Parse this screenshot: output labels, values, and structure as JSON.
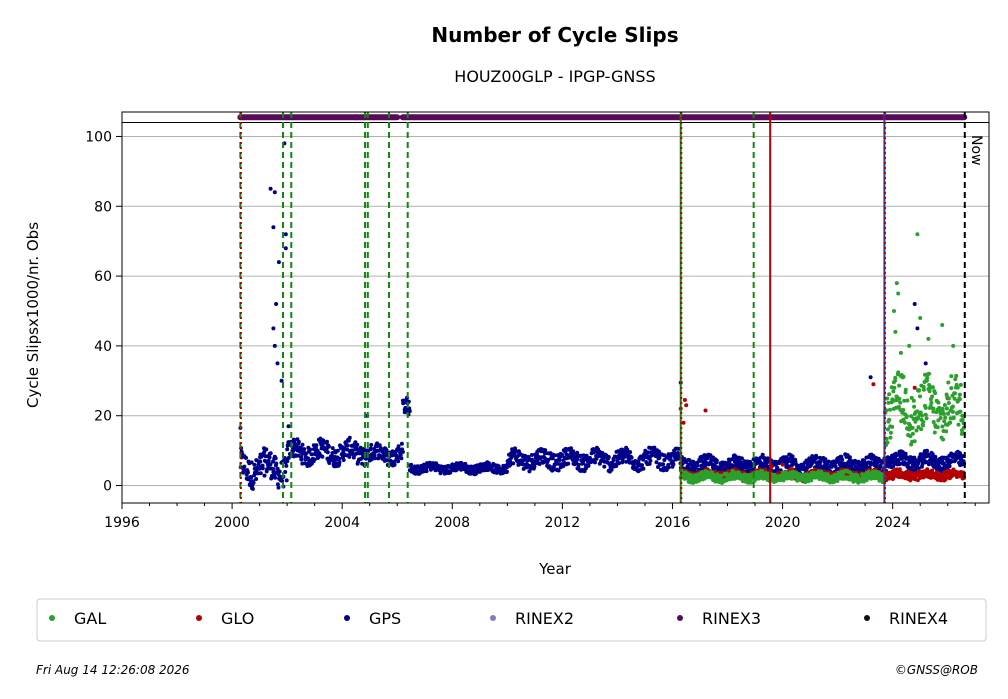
{
  "chart_data": {
    "type": "scatter",
    "title": "Number of Cycle Slips",
    "subtitle": "HOUZ00GLP - IPGP-GNSS",
    "xlabel": "Year",
    "ylabel": "Cycle Slipsx1000/nr. Obs",
    "xlim": [
      1996,
      2027.5
    ],
    "ylim": [
      -5,
      107
    ],
    "xticks": [
      1996,
      2000,
      2004,
      2008,
      2012,
      2016,
      2020,
      2024
    ],
    "yticks": [
      0,
      20,
      40,
      60,
      80,
      100
    ],
    "grid": "horizontal",
    "now_label": "Now",
    "now_x": 2026.62,
    "series": [
      {
        "name": "GPS",
        "color": "#00008b",
        "segments": [
          {
            "from": 2000.3,
            "to": 2002.0,
            "base": 5,
            "spread": 5
          },
          {
            "from": 2002.0,
            "to": 2004.9,
            "base": 9.5,
            "spread": 3.5
          },
          {
            "from": 2004.9,
            "to": 2006.2,
            "base": 9,
            "spread": 3
          },
          {
            "from": 2006.2,
            "to": 2006.45,
            "base": 22,
            "spread": 3
          },
          {
            "from": 2006.45,
            "to": 2010.0,
            "base": 5,
            "spread": 1.5
          },
          {
            "from": 2010.0,
            "to": 2016.3,
            "base": 7.5,
            "spread": 3
          },
          {
            "from": 2016.3,
            "to": 2023.7,
            "base": 6,
            "spread": 2.5
          },
          {
            "from": 2023.7,
            "to": 2026.6,
            "base": 7,
            "spread": 2.5
          }
        ],
        "outliers": [
          [
            2001.4,
            85
          ],
          [
            2001.55,
            84
          ],
          [
            2001.5,
            74
          ],
          [
            2001.7,
            64
          ],
          [
            2001.6,
            52
          ],
          [
            2001.9,
            98
          ],
          [
            2001.95,
            72
          ],
          [
            2001.95,
            68
          ],
          [
            2001.5,
            45
          ],
          [
            2001.55,
            40
          ],
          [
            2001.65,
            35
          ],
          [
            2001.8,
            30
          ],
          [
            2004.9,
            20
          ],
          [
            2016.3,
            29.5
          ],
          [
            2023.2,
            31
          ],
          [
            2024.8,
            52
          ],
          [
            2024.9,
            45
          ],
          [
            2025.2,
            35
          ],
          [
            2002.05,
            17
          ],
          [
            2000.3,
            16.5
          ]
        ]
      },
      {
        "name": "GLO",
        "color": "#b30000",
        "segments": [
          {
            "from": 2016.3,
            "to": 2026.6,
            "base": 3,
            "spread": 1.5
          }
        ],
        "outliers": [
          [
            2016.45,
            24.5
          ],
          [
            2016.5,
            23
          ],
          [
            2016.4,
            18
          ],
          [
            2016.3,
            22
          ],
          [
            2017.2,
            21.5
          ],
          [
            2023.3,
            29
          ],
          [
            2024.8,
            28
          ],
          [
            2026.0,
            25
          ],
          [
            2019.6,
            5.5
          ],
          [
            2020.0,
            6
          ]
        ]
      },
      {
        "name": "GAL",
        "color": "#2ca02c",
        "segments": [
          {
            "from": 2016.3,
            "to": 2023.7,
            "base": 2.5,
            "spread": 1.5
          },
          {
            "from": 2023.7,
            "to": 2026.6,
            "base": 22,
            "spread": 9
          }
        ],
        "outliers": [
          [
            2024.9,
            72
          ],
          [
            2024.15,
            58
          ],
          [
            2024.2,
            55
          ],
          [
            2024.05,
            50
          ],
          [
            2025.0,
            48
          ],
          [
            2025.8,
            46
          ],
          [
            2024.1,
            44
          ],
          [
            2025.3,
            42
          ],
          [
            2024.6,
            40
          ],
          [
            2026.2,
            40
          ],
          [
            2024.3,
            38
          ]
        ]
      }
    ],
    "rinex_bars": {
      "y": 105.5,
      "color": "#5b0a5b",
      "ranges": [
        [
          2000.3,
          2004.5
        ],
        [
          2004.5,
          2004.85
        ],
        [
          2004.9,
          2006.0
        ],
        [
          2006.2,
          2026.6
        ]
      ]
    },
    "vlines": [
      {
        "x": 2000.3,
        "color": "#0b8a0b",
        "style": "dashed"
      },
      {
        "x": 2000.32,
        "color": "#b30000",
        "style": "dotted"
      },
      {
        "x": 2001.85,
        "color": "#0b8a0b",
        "style": "dashed"
      },
      {
        "x": 2002.15,
        "color": "#0b8a0b",
        "style": "dashed"
      },
      {
        "x": 2004.83,
        "color": "#0b8a0b",
        "style": "dashed"
      },
      {
        "x": 2004.93,
        "color": "#0b8a0b",
        "style": "dashed"
      },
      {
        "x": 2005.7,
        "color": "#0b8a0b",
        "style": "dashed"
      },
      {
        "x": 2006.38,
        "color": "#0b8a0b",
        "style": "dashed"
      },
      {
        "x": 2016.3,
        "color": "#0b8a0b",
        "style": "solid"
      },
      {
        "x": 2016.32,
        "color": "#b30000",
        "style": "dotted"
      },
      {
        "x": 2018.95,
        "color": "#0b8a0b",
        "style": "dashed"
      },
      {
        "x": 2019.55,
        "color": "#b30000",
        "style": "solid"
      },
      {
        "x": 2023.7,
        "color": "#1f3fbf",
        "style": "solid"
      },
      {
        "x": 2023.72,
        "color": "#b30000",
        "style": "dotted"
      },
      {
        "x": 2026.62,
        "color": "#000000",
        "style": "dashed"
      }
    ],
    "legend": {
      "placement": "bottom",
      "entries": [
        {
          "label": "GAL",
          "color": "#2ca02c"
        },
        {
          "label": "GLO",
          "color": "#b30000"
        },
        {
          "label": "GPS",
          "color": "#00008b"
        },
        {
          "label": "RINEX2",
          "color": "#7f7fbf"
        },
        {
          "label": "RINEX3",
          "color": "#5b0a5b"
        },
        {
          "label": "RINEX4",
          "color": "#1a0a1a"
        }
      ]
    }
  },
  "footer": {
    "timestamp": "Fri Aug 14 12:26:08 2026",
    "credit": "©GNSS@ROB"
  }
}
